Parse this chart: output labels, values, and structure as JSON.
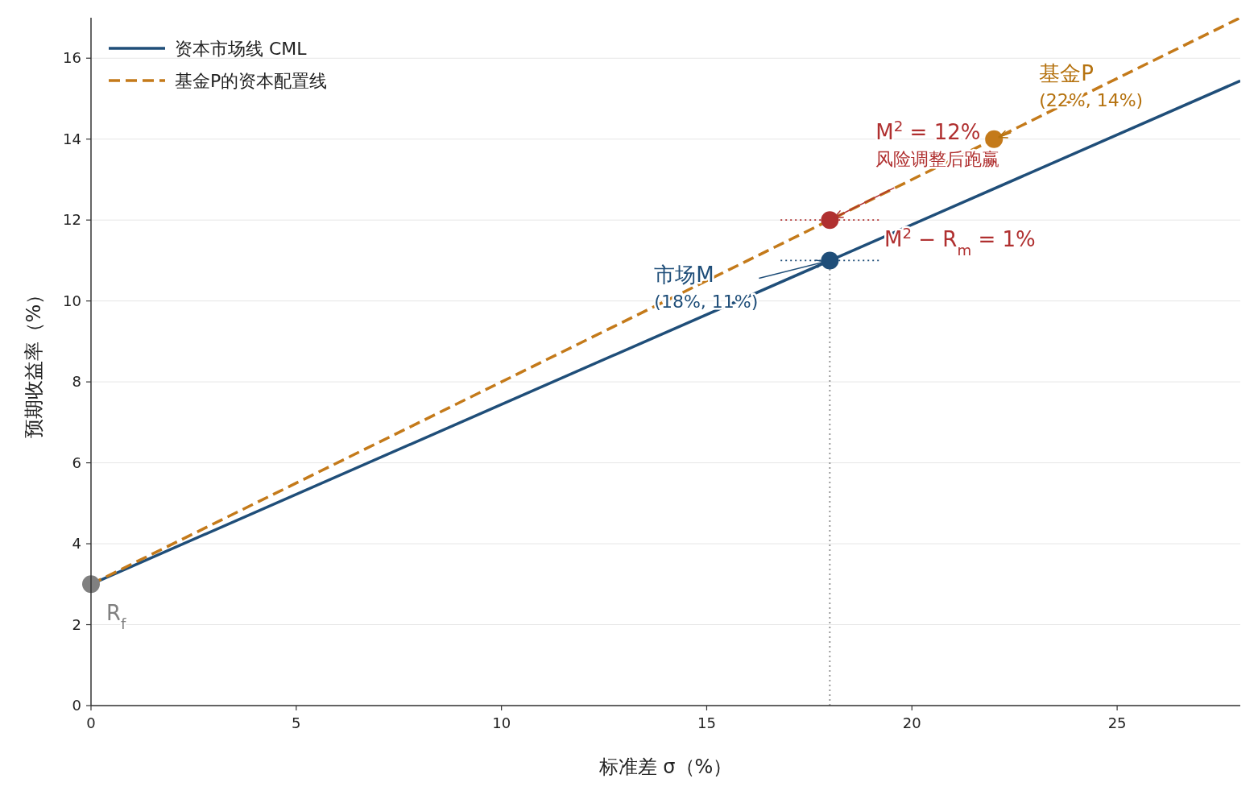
{
  "chart_data": {
    "type": "line",
    "xlabel": "标准差 σ（%）",
    "ylabel": "预期收益率（%）",
    "xlim": [
      0,
      28
    ],
    "ylim": [
      0,
      17
    ],
    "xticks": [
      0,
      5,
      10,
      15,
      20,
      25
    ],
    "yticks": [
      0,
      2,
      4,
      6,
      8,
      10,
      12,
      14,
      16
    ],
    "grid": "y",
    "legend": "top left",
    "series": [
      {
        "name": "资本市场线 CML",
        "type": "line",
        "line_style": "solid",
        "color": "#1f4e79",
        "x": [
          0,
          28
        ],
        "values": [
          3,
          15.44
        ]
      },
      {
        "name": "基金P的资本配置线",
        "type": "line",
        "line_style": "dashed",
        "color": "#c47a1a",
        "x": [
          0,
          28
        ],
        "values": [
          3,
          17
        ]
      },
      {
        "type": "line",
        "line_style": "dotted",
        "color": "#909090",
        "x": [
          18,
          18
        ],
        "values": [
          0,
          11
        ]
      },
      {
        "type": "line",
        "line_style": "dotted",
        "color": "#b03030",
        "x": [
          16.8,
          19.2
        ],
        "values": [
          12,
          12
        ]
      },
      {
        "type": "line",
        "line_style": "dotted",
        "color": "#1f4e79",
        "x": [
          16.8,
          19.2
        ],
        "values": [
          11,
          11
        ]
      },
      {
        "type": "scatter",
        "color": "#808080",
        "x": [
          0
        ],
        "values": [
          3
        ]
      },
      {
        "type": "scatter",
        "color": "#1f4e79",
        "x": [
          18
        ],
        "values": [
          11
        ]
      },
      {
        "type": "scatter",
        "color": "#b03030",
        "x": [
          18
        ],
        "values": [
          12
        ]
      },
      {
        "type": "scatter",
        "color": "#c47a1a",
        "x": [
          22
        ],
        "values": [
          14
        ]
      }
    ],
    "annotations": [
      {
        "text": "基金P\n(22%, 14%)",
        "x": 22,
        "y": 14
      },
      {
        "text": "M$^{2}$ = 12%\n风险调整后跑赢",
        "x": 18,
        "y": 12
      },
      "M$^{2}$ − R$_{m}$ = 1%",
      {
        "text": "市场M\n(18%, 11%)",
        "x": 18,
        "y": 11
      },
      {
        "text": "R$_{f}$",
        "x": 0,
        "y": 3
      }
    ]
  }
}
